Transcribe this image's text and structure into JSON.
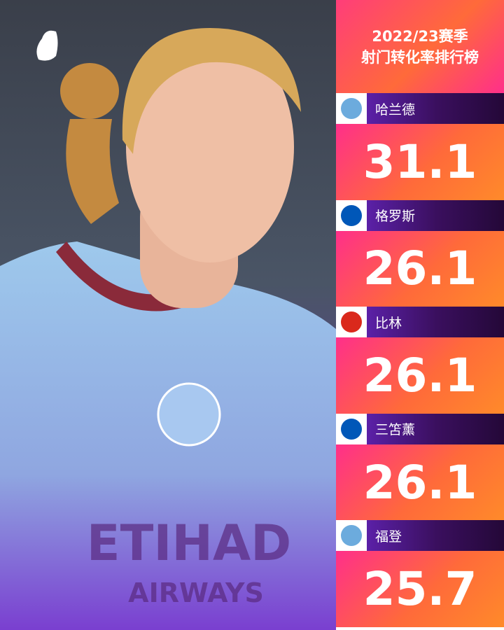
{
  "header": {
    "title_lines": [
      "2022/23赛季",
      "射门转化率排行榜"
    ]
  },
  "ranking": {
    "rows": [
      {
        "name": "哈兰德",
        "value": 31.1,
        "club": "Man City"
      },
      {
        "name": "格罗斯",
        "value": 26.1,
        "club": "Brighton"
      },
      {
        "name": "比林",
        "value": 26.1,
        "club": "Bournemouth"
      },
      {
        "name": "三笘薰",
        "value": 26.1,
        "club": "Brighton"
      },
      {
        "name": "福登",
        "value": 25.7,
        "club": "Man City"
      }
    ]
  },
  "photo": {
    "shirt_text": [
      "ETIHAD",
      "AIRWAYS"
    ]
  }
}
